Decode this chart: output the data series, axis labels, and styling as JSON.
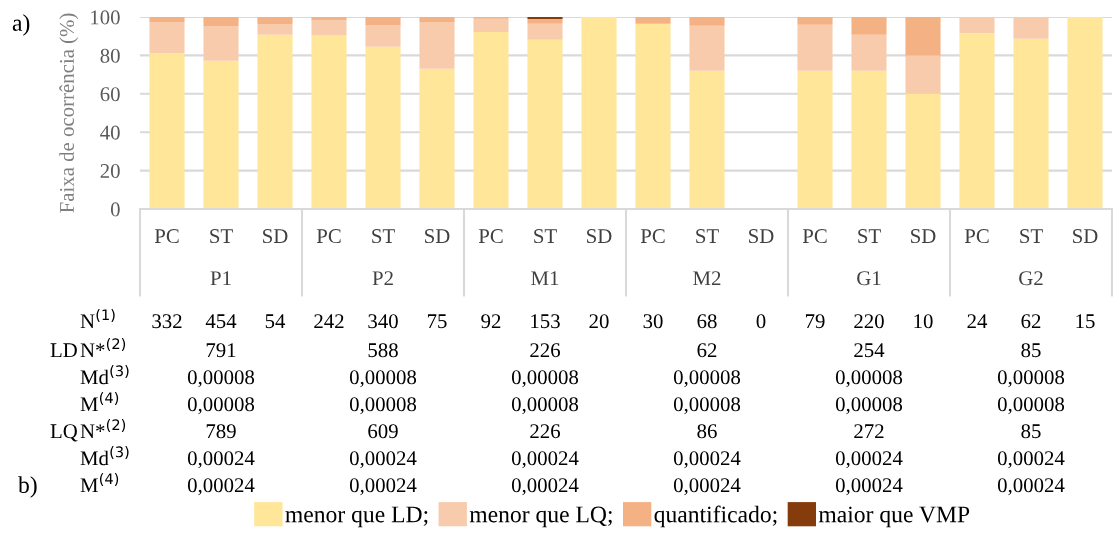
{
  "chart_data": {
    "type": "bar",
    "stacked": true,
    "ylabel": "Faixa de ocorrência (%)",
    "categories": [
      "PC",
      "ST",
      "SD",
      "PC",
      "ST",
      "SD",
      "PC",
      "ST",
      "SD",
      "PC",
      "ST",
      "SD",
      "PC",
      "ST",
      "SD",
      "PC",
      "ST",
      "SD"
    ],
    "series": [
      {
        "name": "menor que LD;",
        "color": "#ffe699",
        "values": [
          81.2,
          77.2,
          90.8,
          90.4,
          84.5,
          73.0,
          92.2,
          88.2,
          100,
          96.5,
          72.0,
          0,
          72.0,
          72.0,
          60,
          91.6,
          88.7,
          100
        ]
      },
      {
        "name": "menor que LQ;",
        "color": "#f8cbad",
        "values": [
          16.2,
          17.9,
          5.5,
          7.9,
          11.1,
          24.4,
          6.9,
          8.3,
          0,
          0,
          23.5,
          0,
          24.0,
          18.8,
          20,
          8.4,
          11.3,
          0
        ]
      },
      {
        "name": "quantificado;",
        "color": "#f4b183",
        "values": [
          2.6,
          4.9,
          3.7,
          1.7,
          4.4,
          2.6,
          0.9,
          2.5,
          0,
          3.5,
          4.5,
          0,
          4.0,
          9.2,
          20,
          0,
          0,
          0
        ]
      },
      {
        "name": "maior que VMP",
        "color": "#843c0c",
        "values": [
          0,
          0,
          0,
          0,
          0,
          0,
          0,
          1.0,
          0,
          0,
          0,
          0,
          0,
          0,
          0,
          0,
          0,
          0
        ]
      }
    ],
    "ylim": [
      0,
      100
    ],
    "yticks": [
      0,
      20,
      40,
      60,
      80,
      100
    ],
    "grid": "y",
    "legend": "bottom",
    "annotations": [
      "a)",
      "b)",
      "P1",
      "P2",
      "M1",
      "M2",
      "G1",
      "G2",
      "LD",
      "LQ",
      "N$^{(1)}$",
      "N*$^{(2)}$",
      "Md$^{(3)}$",
      "M$^{(4)}$",
      "N*$^{(2)}$",
      "Md$^{(3)}$",
      "M$^{(4)}$",
      "332",
      "454",
      "54",
      "242",
      "340",
      "75",
      "92",
      "153",
      "20",
      "30",
      "68",
      "0",
      "79",
      "220",
      "10",
      "24",
      "62",
      "15",
      "791",
      "588",
      "226",
      "62",
      "254",
      "85",
      "0,00008",
      "0,00008",
      "0,00008",
      "0,00008",
      "0,00008",
      "0,00008",
      "0,00008",
      "0,00008",
      "0,00008",
      "0,00008",
      "0,00008",
      "0,00008",
      "789",
      "609",
      "226",
      "86",
      "272",
      "85",
      "0,00024",
      "0,00024",
      "0,00024",
      "0,00024",
      "0,00024",
      "0,00024",
      "0,00024",
      "0,00024",
      "0,00024",
      "0,00024",
      "0,00024",
      "0,00024"
    ]
  }
}
